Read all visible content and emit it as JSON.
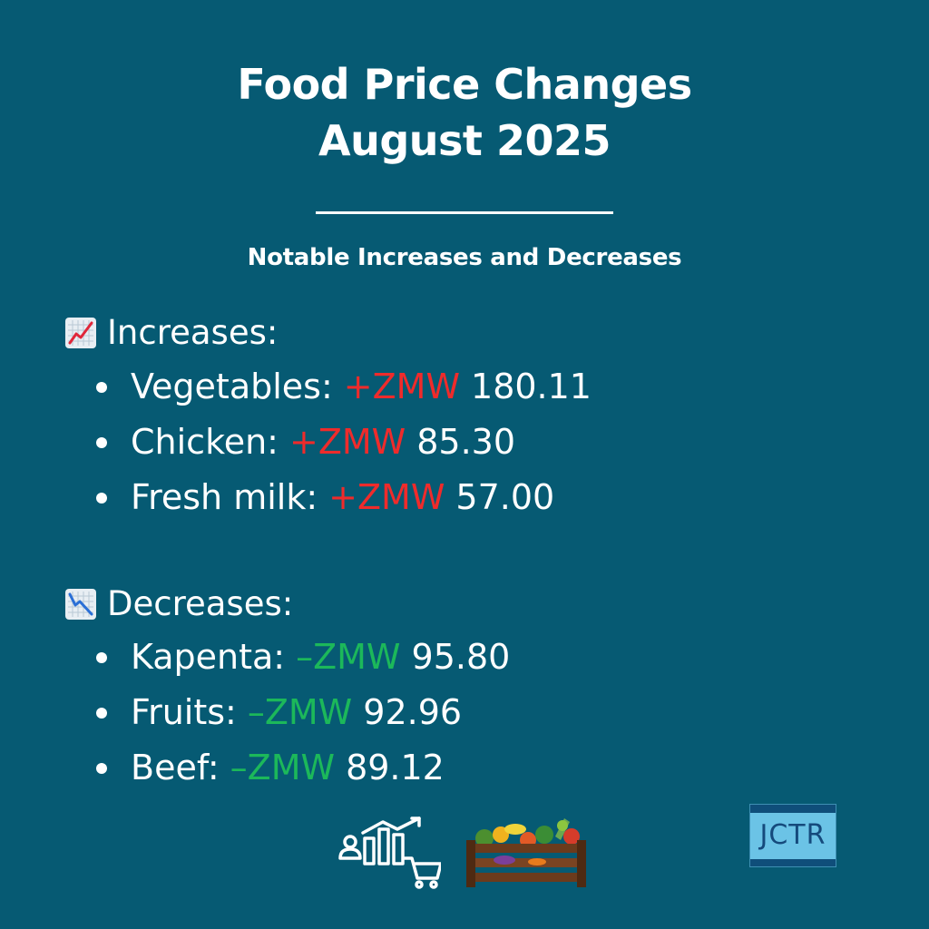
{
  "header": {
    "title_line1": "Food Price Changes",
    "title_line2": "August 2025",
    "subtitle": "Notable Increases and Decreases"
  },
  "increases": {
    "heading": "Increases:",
    "icon": "chart-increasing-icon",
    "sign_color": "#ef2b2b",
    "items": [
      {
        "label": "Vegetables:",
        "sign": "+ZMW",
        "value": "180.11"
      },
      {
        "label": "Chicken:",
        "sign": "+ZMW",
        "value": "85.30"
      },
      {
        "label": "Fresh milk:",
        "sign": "+ZMW",
        "value": "57.00"
      }
    ]
  },
  "decreases": {
    "heading": "Decreases:",
    "icon": "chart-decreasing-icon",
    "sign_color": "#1cb85a",
    "items": [
      {
        "label": "Kapenta:",
        "sign": "–ZMW",
        "value": "95.80"
      },
      {
        "label": "Fruits:",
        "sign": "–ZMW",
        "value": "92.96"
      },
      {
        "label": "Beef:",
        "sign": "–ZMW",
        "value": "89.12"
      }
    ]
  },
  "footer": {
    "icons": [
      "price-rise-shopping-icon",
      "vegetable-crate-icon"
    ],
    "logo_text": "JCTR",
    "logo_icon": "jctr-logo"
  },
  "colors": {
    "background": "#065a73",
    "text": "#ffffff",
    "increase": "#ef2b2b",
    "decrease": "#1cb85a"
  }
}
